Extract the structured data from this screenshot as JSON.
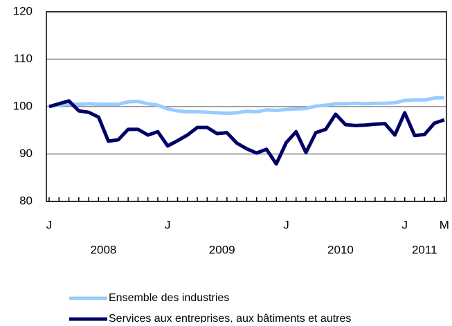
{
  "chart_data": {
    "type": "line",
    "categories": [
      "J",
      null,
      null,
      null,
      null,
      null,
      null,
      null,
      null,
      null,
      null,
      null,
      "J",
      null,
      null,
      null,
      null,
      null,
      null,
      null,
      null,
      null,
      null,
      null,
      "J",
      null,
      null,
      null,
      null,
      null,
      null,
      null,
      null,
      null,
      null,
      null,
      "J",
      null,
      null,
      null,
      "M"
    ],
    "year_labels": [
      "2008",
      "2009",
      "2010",
      "2011"
    ],
    "series": [
      {
        "name": "Ensemble des industries",
        "color": "#99ccff",
        "values": [
          100,
          100.3,
          100.5,
          100.5,
          100.6,
          100.5,
          100.5,
          100.5,
          101,
          101.1,
          100.6,
          100.3,
          99.5,
          99.1,
          98.9,
          98.9,
          98.8,
          98.7,
          98.6,
          98.7,
          99,
          98.9,
          99.3,
          99.2,
          99.4,
          99.5,
          99.6,
          100.1,
          100.3,
          100.6,
          100.6,
          100.7,
          100.6,
          100.7,
          100.7,
          100.8,
          101.3,
          101.4,
          101.4,
          101.8,
          101.9
        ]
      },
      {
        "name": "Services aux entreprises, aux bâtiments et autres",
        "color": "#000066",
        "values": [
          100,
          100.6,
          101.2,
          99.1,
          98.8,
          97.8,
          92.7,
          93,
          95.2,
          95.2,
          94,
          94.7,
          91.7,
          92.8,
          94,
          95.6,
          95.6,
          94.3,
          94.5,
          92.3,
          91.1,
          90.2,
          91,
          87.9,
          92.4,
          94.7,
          90.3,
          94.5,
          95.2,
          98.4,
          96.2,
          96,
          96.1,
          96.3,
          96.4,
          94,
          98.7,
          93.9,
          94.1,
          96.5,
          97.2
        ]
      }
    ],
    "ylim": [
      80,
      120
    ],
    "yticks": [
      80,
      90,
      100,
      110,
      120
    ],
    "grid": true
  }
}
